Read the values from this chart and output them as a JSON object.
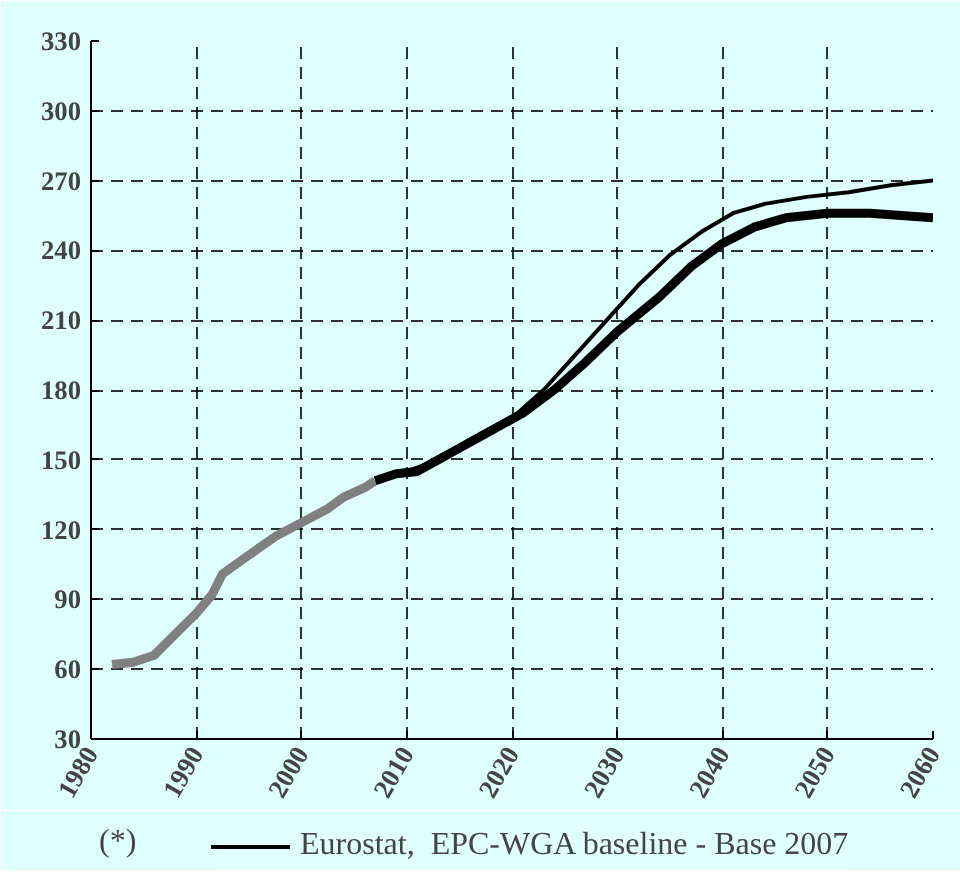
{
  "chart_data": {
    "type": "line",
    "annotations": [
      "(*)"
    ],
    "xlim": [
      1980,
      2060
    ],
    "xticks": [
      1980,
      1990,
      2000,
      2010,
      2020,
      2030,
      2040,
      2050,
      2060
    ],
    "ylim": [
      30,
      330
    ],
    "yticks": [
      30,
      60,
      90,
      120,
      150,
      180,
      210,
      240,
      270,
      300,
      330
    ],
    "grid": true,
    "legend": "bottom",
    "marker": "none",
    "line_style": "solid",
    "series": [
      {
        "color": "#808080",
        "x": [
          1982,
          1984,
          1986,
          1988,
          1990,
          1991.5,
          1992.5,
          1995,
          1997.5,
          2000,
          2002.5,
          2004,
          2006,
          2007
        ],
        "values": [
          62,
          63,
          66,
          75,
          84,
          92,
          101,
          109,
          117,
          123,
          129,
          134,
          138,
          141
        ]
      },
      {
        "color": "#000000",
        "x": [
          2007,
          2009,
          2011,
          2013,
          2015,
          2017,
          2019,
          2021,
          2024,
          2027,
          2030,
          2034,
          2037,
          2040,
          2043,
          2046,
          2050,
          2054,
          2060
        ],
        "values": [
          141,
          144,
          145,
          150,
          155,
          160,
          165,
          170,
          180,
          192,
          205,
          220,
          233,
          243,
          250,
          254,
          256,
          256,
          254
        ]
      },
      {
        "name": "Eurostat,  EPC-WGA baseline - Base 2007",
        "color": "#000000",
        "x": [
          2010,
          2013,
          2016,
          2020,
          2023,
          2026,
          2029,
          2032,
          2035,
          2038,
          2041,
          2044,
          2048,
          2052,
          2056,
          2060
        ],
        "values": [
          145,
          150,
          157,
          168,
          180,
          195,
          210,
          225,
          238,
          248,
          256,
          260,
          263,
          265,
          268,
          270
        ]
      }
    ]
  }
}
